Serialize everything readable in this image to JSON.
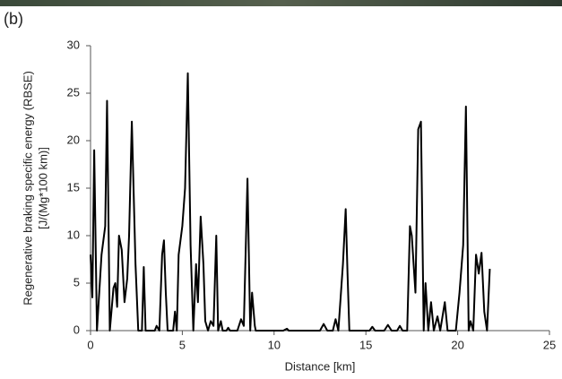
{
  "chart_data": {
    "type": "line",
    "label": "(b)",
    "ylabel": [
      "Regenerative braking specific energy (RBSE)",
      "[J/(Mg*100 km)]"
    ],
    "xlabel": "Distance [km]",
    "x": [
      0,
      0.1,
      0.2,
      0.35,
      0.6,
      0.8,
      0.9,
      1.05,
      1.25,
      1.35,
      1.45,
      1.55,
      1.7,
      1.85,
      2.0,
      2.1,
      2.25,
      2.45,
      2.6,
      2.8,
      2.9,
      3.0,
      3.5,
      3.6,
      3.75,
      3.9,
      4.0,
      4.1,
      4.2,
      4.5,
      4.6,
      4.7,
      4.8,
      5.0,
      5.15,
      5.3,
      5.45,
      5.6,
      5.75,
      5.85,
      6.0,
      6.15,
      6.25,
      6.4,
      6.55,
      6.7,
      6.85,
      6.95,
      7.1,
      7.2,
      7.4,
      7.5,
      7.6,
      8.0,
      8.2,
      8.35,
      8.55,
      8.7,
      8.8,
      8.95,
      9.0,
      10.5,
      10.7,
      10.8,
      12.5,
      12.7,
      12.9,
      13.2,
      13.35,
      13.5,
      13.75,
      13.9,
      14.0,
      14.1,
      15.0,
      15.2,
      15.35,
      15.5,
      16.0,
      16.2,
      16.4,
      16.7,
      16.85,
      17.0,
      17.25,
      17.4,
      17.5,
      17.7,
      17.85,
      18.0,
      18.15,
      18.25,
      18.4,
      18.55,
      18.7,
      18.9,
      19.05,
      19.3,
      19.45,
      19.9,
      20.1,
      20.3,
      20.45,
      20.6,
      20.7,
      20.85,
      21.0,
      21.15,
      21.3,
      21.45,
      21.6,
      21.75
    ],
    "series": [
      {
        "color": "#000000",
        "values": [
          8,
          3.5,
          19,
          0,
          8,
          11,
          24.2,
          0,
          4.5,
          5,
          2.5,
          10,
          8.5,
          3,
          5.5,
          10,
          22,
          7,
          0,
          0,
          6.7,
          0,
          0,
          0.5,
          0,
          8,
          9.5,
          4,
          0,
          0,
          2,
          0,
          8,
          11,
          15,
          27.1,
          9,
          0,
          7,
          3,
          12,
          7,
          1,
          0,
          1,
          0.5,
          10,
          0,
          1,
          0,
          0,
          0.3,
          0,
          0,
          1.2,
          0.5,
          16,
          0,
          4,
          0.5,
          0,
          0,
          0.2,
          0,
          0,
          0.7,
          0,
          0,
          1.2,
          0,
          7,
          12.8,
          6,
          0,
          0,
          0,
          0.4,
          0,
          0,
          0.6,
          0,
          0,
          0.5,
          0,
          0,
          11,
          10,
          4,
          21.2,
          22,
          0,
          5,
          0,
          3,
          0,
          1.5,
          0,
          3,
          0,
          0,
          4,
          9,
          23.6,
          0,
          1,
          0,
          8,
          6,
          8.2,
          2,
          0,
          6.5
        ]
      }
    ],
    "xlim": [
      0,
      25
    ],
    "xticks": [
      0,
      5,
      10,
      15,
      20,
      25
    ],
    "ylim": [
      0,
      30
    ],
    "yticks": [
      0,
      5,
      10,
      15,
      20,
      25,
      30
    ],
    "grid": false
  }
}
